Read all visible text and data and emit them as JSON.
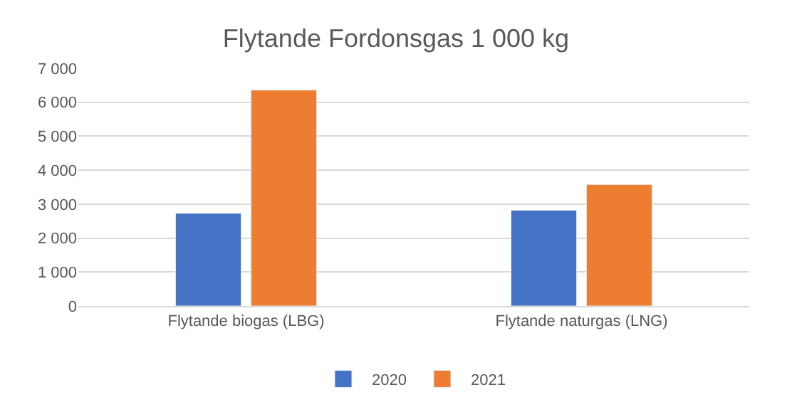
{
  "chart_data": {
    "type": "bar",
    "title": "Flytande Fordonsgas 1 000 kg",
    "categories": [
      "Flytande biogas (LBG)",
      "Flytande naturgas (LNG)"
    ],
    "series": [
      {
        "name": "2020",
        "color": "#4472c4",
        "values": [
          2730,
          2820
        ]
      },
      {
        "name": "2021",
        "color": "#ed7d31",
        "values": [
          6360,
          3580
        ]
      }
    ],
    "ylim": [
      0,
      7000
    ],
    "yticks": [
      {
        "value": 0,
        "label": "0"
      },
      {
        "value": 1000,
        "label": "1 000"
      },
      {
        "value": 2000,
        "label": "2 000"
      },
      {
        "value": 3000,
        "label": "3 000"
      },
      {
        "value": 4000,
        "label": "4 000"
      },
      {
        "value": 5000,
        "label": "5 000"
      },
      {
        "value": 6000,
        "label": "6 000"
      },
      {
        "value": 7000,
        "label": "7 000"
      }
    ],
    "grid": "y",
    "legend": "bottom"
  }
}
